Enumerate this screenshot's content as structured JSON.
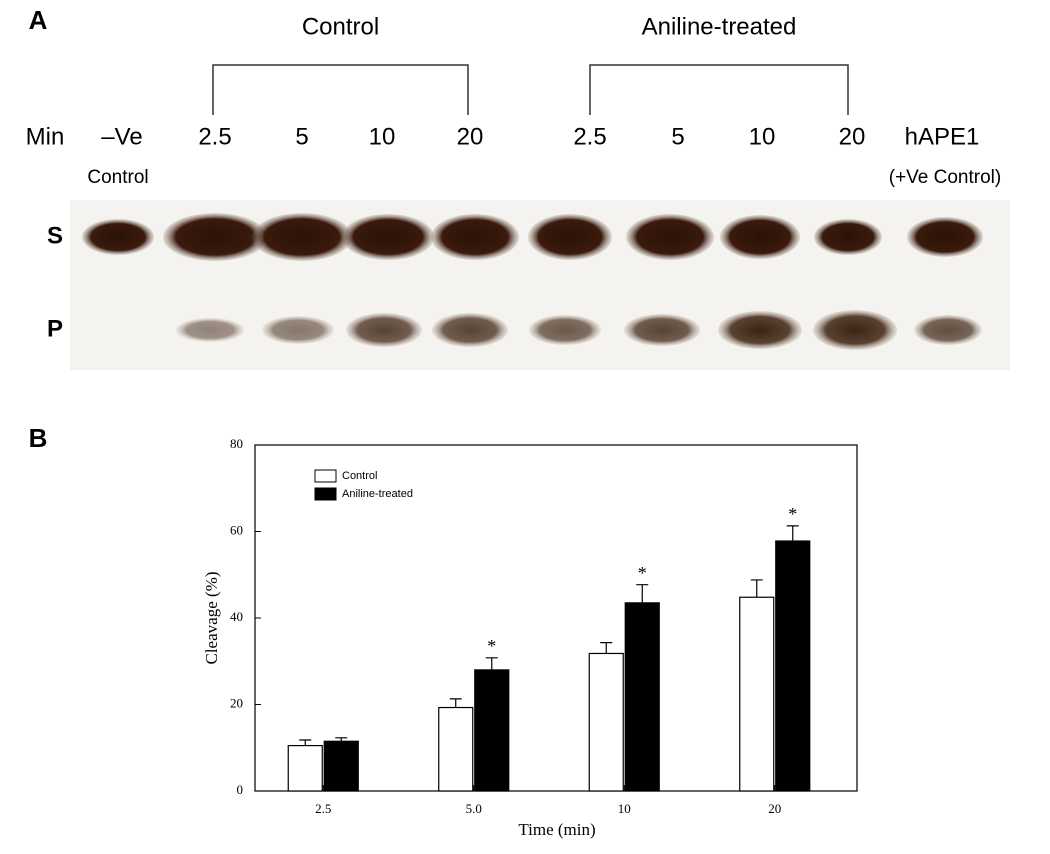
{
  "panel_a": {
    "label": "A",
    "time_label": "Min",
    "negative_control": [
      "–Ve",
      "Control"
    ],
    "groups": [
      {
        "name": "Control",
        "lanes": [
          "2.5",
          "5",
          "10",
          "20"
        ]
      },
      {
        "name": "Aniline-treated",
        "lanes": [
          "2.5",
          "5",
          "10",
          "20"
        ]
      }
    ],
    "positive_control": [
      "hAPE1",
      "(+Ve Control)"
    ],
    "band_labels": [
      "S",
      "P"
    ]
  },
  "panel_b_label": "B",
  "chart_data": {
    "type": "bar",
    "x_label": "Time (min)",
    "y_label": "Cleavage (%)",
    "categories": [
      "2.5",
      "5.0",
      "10",
      "20"
    ],
    "series": [
      {
        "name": "Control",
        "color": "#ffffff",
        "values": [
          10.5,
          19.3,
          31.8,
          44.8
        ],
        "errors": [
          1.3,
          2.0,
          2.5,
          4.0
        ]
      },
      {
        "name": "Aniline-treated",
        "color": "#000000",
        "values": [
          11.5,
          28.0,
          43.5,
          57.8
        ],
        "errors": [
          0.8,
          2.8,
          4.2,
          3.5
        ],
        "annotations": [
          null,
          "*",
          "*",
          "*"
        ]
      }
    ],
    "ylim": [
      0,
      80
    ],
    "yticks": [
      0,
      20,
      40,
      60,
      80
    ],
    "legend": "upper left",
    "grid": false
  }
}
